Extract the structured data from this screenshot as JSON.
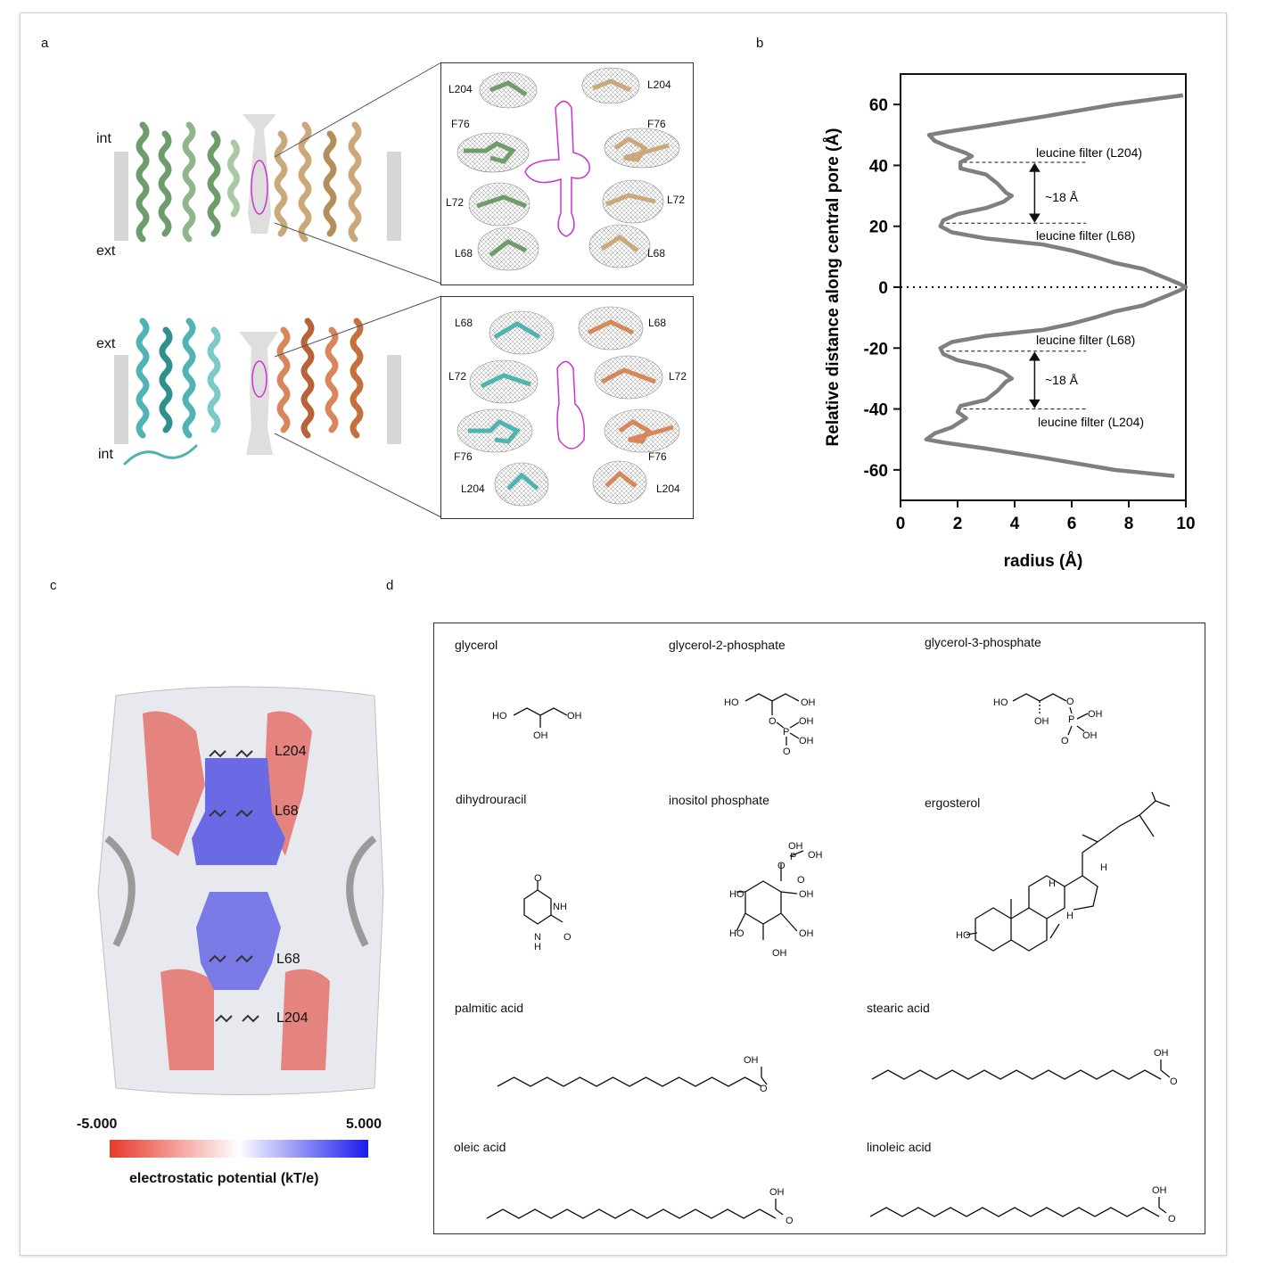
{
  "panels": {
    "a": "a",
    "b": "b",
    "c": "c",
    "d": "d"
  },
  "panel_a": {
    "top_labels": {
      "int": "int",
      "ext": "ext"
    },
    "bottom_labels": {
      "ext": "ext",
      "int": "int"
    },
    "top_inset": {
      "residues": [
        "L204",
        "L204",
        "F76",
        "F76",
        "L72",
        "L72",
        "L68",
        "L68"
      ]
    },
    "bottom_inset": {
      "residues": [
        "L68",
        "L68",
        "L72",
        "L72",
        "F76",
        "F76",
        "L204",
        "L204"
      ]
    },
    "colors": {
      "green": "#6f9c6b",
      "tan": "#c9a87a",
      "cyan": "#4fb3b0",
      "orange": "#d8875a",
      "magenta": "#cc33cc"
    }
  },
  "chart_data": {
    "type": "line",
    "xlabel": "radius (Å)",
    "ylabel": "Relative distance along central pore (Å)",
    "xlim": [
      0,
      10
    ],
    "ylim": [
      -70,
      70
    ],
    "xticks": [
      "0",
      "2",
      "4",
      "6",
      "8",
      "10"
    ],
    "yticks": [
      "60",
      "40",
      "20",
      "0",
      "-20",
      "-40",
      "-60"
    ],
    "series": [
      {
        "x": [
          9.9,
          7.5,
          5.0,
          3.0,
          1.6,
          1.0,
          1.2,
          1.7,
          2.3,
          2.5,
          2.1,
          2.1,
          3.0,
          3.4,
          3.7,
          3.9,
          3.6,
          3.0,
          2.5,
          2.0,
          1.5,
          1.4,
          1.8,
          3.0,
          5.0,
          6.0,
          6.8,
          7.5,
          8.5,
          9.3,
          9.8,
          10.0,
          9.8,
          9.3,
          8.5,
          7.5,
          6.8,
          6.0,
          5.0,
          3.0,
          1.8,
          1.4,
          1.5,
          2.0,
          2.5,
          3.0,
          3.6,
          3.9,
          3.7,
          3.4,
          3.0,
          2.1,
          2.0,
          2.3,
          1.8,
          1.2,
          0.9,
          1.5,
          3.0,
          5.0,
          7.5,
          9.6
        ],
        "y": [
          63,
          60,
          56,
          53,
          51,
          50,
          48,
          46,
          44,
          43,
          41,
          39,
          37,
          34,
          31,
          30,
          28,
          26,
          25,
          24,
          22,
          20,
          18,
          16,
          14,
          12,
          10,
          8,
          6,
          3,
          1,
          0,
          -1,
          -3,
          -6,
          -8,
          -10,
          -12,
          -14,
          -16,
          -18,
          -20,
          -22,
          -24,
          -25,
          -26,
          -28,
          -30,
          -31,
          -34,
          -37,
          -39,
          -41,
          -43,
          -46,
          -48,
          -50,
          -51,
          -53,
          -56,
          -60,
          -62
        ]
      }
    ],
    "annotations": {
      "filter_top_l204": "leucine filter (L204)",
      "filter_top_l68": "leucine filter (L68)",
      "filter_bot_l68": "leucine filter (L68)",
      "filter_bot_l204": "leucine filter (L204)",
      "dist_top": "~18 Å",
      "dist_bot": "~18 Å"
    },
    "filter_levels": [
      41,
      21,
      -21,
      -40
    ],
    "grid": false
  },
  "panel_c": {
    "labels": [
      "L204",
      "L68",
      "L68",
      "L204"
    ],
    "colorbar": {
      "min_label": "-5.000",
      "max_label": "5.000",
      "title": "electrostatic potential (kT/e)",
      "low_color": "#e8392a",
      "mid_color": "#ffffff",
      "high_color": "#1a1aef"
    }
  },
  "panel_d": {
    "molecules": [
      {
        "name": "glycerol",
        "atoms": [
          "HO",
          "OH",
          "OH"
        ]
      },
      {
        "name": "glycerol-2-phosphate",
        "atoms": [
          "HO",
          "OH",
          "O",
          "P",
          "OH",
          "OH",
          "O"
        ]
      },
      {
        "name": "glycerol-3-phosphate",
        "atoms": [
          "HO",
          "OH",
          "O",
          "P",
          "OH",
          "OH",
          "O"
        ]
      },
      {
        "name": "dihydrouracil",
        "atoms": [
          "O",
          "NH",
          "O",
          "N",
          "H"
        ]
      },
      {
        "name": "inositol phosphate",
        "atoms": [
          "OH",
          "OH",
          "O",
          "P",
          "O",
          "HO",
          "OH",
          "HO",
          "OH",
          "OH"
        ]
      },
      {
        "name": "ergosterol",
        "atoms": [
          "H",
          "H",
          "H",
          "HO"
        ]
      },
      {
        "name": "palmitic acid",
        "atoms": [
          "OH",
          "O"
        ]
      },
      {
        "name": "stearic acid",
        "atoms": [
          "OH",
          "O"
        ]
      },
      {
        "name": "oleic acid",
        "atoms": [
          "OH",
          "O"
        ]
      },
      {
        "name": "linoleic acid",
        "atoms": [
          "OH",
          "O"
        ]
      }
    ]
  }
}
